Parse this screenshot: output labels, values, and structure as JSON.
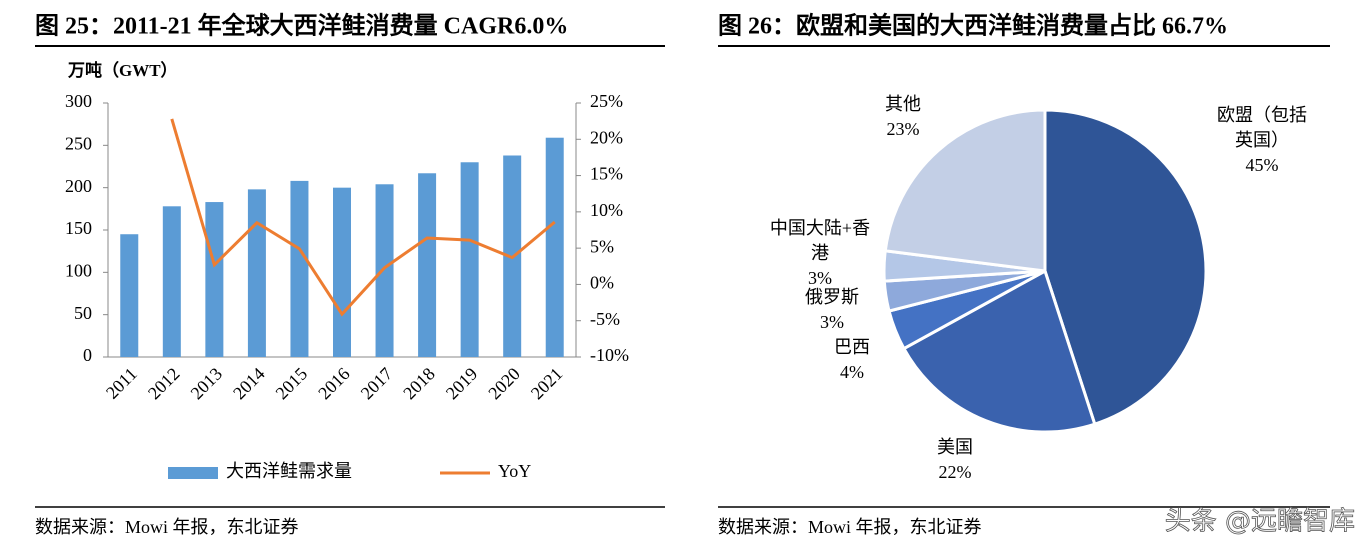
{
  "chart_data": [
    {
      "type": "bar_line",
      "title": "图 25：2011-21 年全球大西洋鲑消费量 CAGR6.0%",
      "ylabel": "万吨（GWT）",
      "categories": [
        "2011",
        "2012",
        "2013",
        "2014",
        "2015",
        "2016",
        "2017",
        "2018",
        "2019",
        "2020",
        "2021"
      ],
      "series": [
        {
          "name": "大西洋鲑需求量",
          "type": "bar",
          "color": "#5b9bd5",
          "values": [
            145,
            178,
            183,
            198,
            208,
            200,
            204,
            217,
            230,
            238,
            259
          ]
        },
        {
          "name": "YoY",
          "type": "line",
          "axis": "y2",
          "color": "#ed7d31",
          "values": [
            null,
            22.8,
            2.7,
            8.5,
            4.9,
            -4.1,
            2.3,
            6.4,
            6.1,
            3.7,
            8.6
          ]
        }
      ],
      "ylim": [
        0,
        300
      ],
      "yticks": [
        0,
        50,
        100,
        150,
        200,
        250,
        300
      ],
      "y2lim": [
        -10,
        25
      ],
      "y2ticks": [
        {
          "value": 25,
          "label": "25%"
        },
        {
          "value": 20,
          "label": "20%"
        },
        {
          "value": 15,
          "label": "15%"
        },
        {
          "value": 10,
          "label": "10%"
        },
        {
          "value": 5,
          "label": "5%"
        },
        {
          "value": 0,
          "label": "0%"
        },
        {
          "value": -5,
          "label": "-5%"
        },
        {
          "value": -10,
          "label": "-10%"
        }
      ],
      "legend": "bottom",
      "source": "数据来源：Mowi 年报，东北证券"
    },
    {
      "type": "pie",
      "title": "图 26：欧盟和美国的大西洋鲑消费量占比 66.7%",
      "categories": [
        "欧盟（包括英国）",
        "美国",
        "巴西",
        "俄罗斯",
        "中国大陆+香港",
        "其他"
      ],
      "values": [
        45,
        22,
        4,
        3,
        3,
        23
      ],
      "value_labels": [
        "45%",
        "22%",
        "4%",
        "3%",
        "3%",
        "23%"
      ],
      "colors": [
        "#2f5597",
        "#3a62ae",
        "#4472c4",
        "#8ea9db",
        "#b4c7e7",
        "#c3cfe6"
      ],
      "source": "数据来源：Mowi 年报，东北证券"
    }
  ],
  "watermark": "头条 @远瞻智库"
}
